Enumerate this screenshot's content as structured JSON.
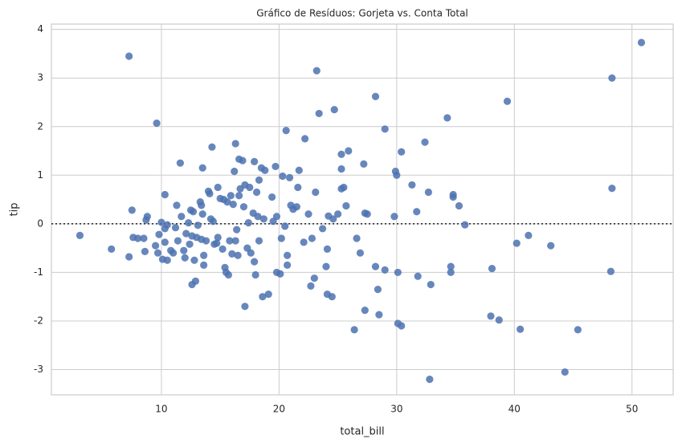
{
  "chart_data": {
    "type": "scatter",
    "title": "Gráfico de Resíduos: Gorjeta vs. Conta Total",
    "x_label": "total_bill",
    "y_label": "tip",
    "color": "#4c72b0",
    "grid": true,
    "hline": 0,
    "xlim": [
      0.65,
      53.5
    ],
    "xticks": [
      10,
      20,
      30,
      40,
      50
    ],
    "ylim": [
      -3.52,
      4.11
    ],
    "yticks": [
      -3,
      -2,
      -1,
      0,
      1,
      2,
      3,
      4
    ],
    "x": [
      7.25,
      9.6,
      3.07,
      5.75,
      7.25,
      7.5,
      7.6,
      8.0,
      8.5,
      8.7,
      8.8,
      8.6,
      9.5,
      9.7,
      9.8,
      10.0,
      10.1,
      10.3,
      10.3,
      10.5,
      10.3,
      10.5,
      10.8,
      11.0,
      11.2,
      11.3,
      11.4,
      11.6,
      11.7,
      11.9,
      12.0,
      12.1,
      12.3,
      12.4,
      12.5,
      12.6,
      12.6,
      12.7,
      12.8,
      12.9,
      13.0,
      13.1,
      13.3,
      13.4,
      13.4,
      13.5,
      13.5,
      13.6,
      13.6,
      13.8,
      14.0,
      14.1,
      14.2,
      14.3,
      14.4,
      14.5,
      14.7,
      14.8,
      14.8,
      15.0,
      15.2,
      15.3,
      15.4,
      15.5,
      15.6,
      15.7,
      15.8,
      15.9,
      16.0,
      16.1,
      16.2,
      16.3,
      16.3,
      16.4,
      16.5,
      16.6,
      16.6,
      16.7,
      16.9,
      17.0,
      17.1,
      17.1,
      17.3,
      17.4,
      17.5,
      17.6,
      17.8,
      17.9,
      17.9,
      18.0,
      18.1,
      18.2,
      18.3,
      18.3,
      18.5,
      18.6,
      18.7,
      18.8,
      19.1,
      19.4,
      19.5,
      19.7,
      19.8,
      19.8,
      20.1,
      20.2,
      20.3,
      20.5,
      20.6,
      20.7,
      20.7,
      20.9,
      21.0,
      21.2,
      21.5,
      21.6,
      21.7,
      22.1,
      22.2,
      22.5,
      22.7,
      22.8,
      23.0,
      23.1,
      23.2,
      23.4,
      23.7,
      24.0,
      24.1,
      24.1,
      24.2,
      24.5,
      24.6,
      24.7,
      25.0,
      25.3,
      25.3,
      25.3,
      25.5,
      25.7,
      25.9,
      26.4,
      26.6,
      26.9,
      27.2,
      27.3,
      27.3,
      27.5,
      28.2,
      28.2,
      28.4,
      28.5,
      29.0,
      29.0,
      29.8,
      29.9,
      30.0,
      30.1,
      30.1,
      30.4,
      30.4,
      31.3,
      31.7,
      31.8,
      32.4,
      32.7,
      32.8,
      32.9,
      34.3,
      34.6,
      34.6,
      34.8,
      34.8,
      35.3,
      35.8,
      38.0,
      38.1,
      38.7,
      39.4,
      40.2,
      40.5,
      41.2,
      43.1,
      44.3,
      45.4,
      48.2,
      48.3,
      48.3,
      50.8
    ],
    "values": [
      3.45,
      2.07,
      -0.24,
      -0.52,
      -0.68,
      0.28,
      -0.28,
      -0.3,
      -0.3,
      0.08,
      0.15,
      -0.57,
      -0.45,
      -0.6,
      -0.22,
      0.03,
      -0.73,
      0.6,
      -0.38,
      -0.75,
      -0.1,
      -0.02,
      -0.55,
      -0.6,
      -0.08,
      0.38,
      -0.35,
      1.25,
      0.15,
      -0.55,
      -0.7,
      -0.2,
      0.02,
      -0.42,
      0.28,
      -0.25,
      -1.25,
      0.25,
      -0.75,
      -1.18,
      -0.28,
      -0.03,
      0.45,
      0.38,
      -0.32,
      0.2,
      1.15,
      -0.65,
      -0.85,
      -0.35,
      0.67,
      0.62,
      0.1,
      1.58,
      0.05,
      -0.42,
      -0.4,
      0.75,
      -0.28,
      0.52,
      -0.52,
      0.5,
      -0.9,
      -1.0,
      0.45,
      -1.05,
      -0.35,
      0.58,
      -0.62,
      0.4,
      1.08,
      1.65,
      -0.35,
      -0.12,
      -0.65,
      0.58,
      1.33,
      0.72,
      1.3,
      0.35,
      0.8,
      -1.7,
      -0.5,
      0.02,
      0.75,
      -0.6,
      0.22,
      1.28,
      -0.78,
      -1.05,
      0.65,
      0.15,
      0.9,
      -0.35,
      1.15,
      -1.5,
      0.1,
      1.1,
      -1.45,
      0.55,
      0.05,
      1.18,
      -1.0,
      0.15,
      -1.03,
      -0.3,
      0.98,
      -0.05,
      1.92,
      -0.65,
      -0.85,
      0.95,
      0.38,
      0.3,
      0.35,
      0.75,
      1.1,
      -0.38,
      1.75,
      0.2,
      -1.28,
      -0.3,
      -1.12,
      0.65,
      3.15,
      2.27,
      -0.1,
      -0.88,
      -1.45,
      -0.52,
      0.16,
      -1.5,
      0.1,
      2.35,
      0.2,
      0.72,
      1.13,
      1.43,
      0.75,
      0.37,
      1.5,
      -2.18,
      -0.3,
      -0.6,
      1.23,
      -1.78,
      0.22,
      0.2,
      2.62,
      -0.88,
      -1.35,
      -1.87,
      1.95,
      -0.95,
      0.15,
      1.08,
      1.0,
      -2.05,
      -1.0,
      -2.1,
      1.48,
      0.8,
      0.25,
      -1.08,
      1.68,
      0.65,
      -3.2,
      -1.25,
      2.18,
      -0.88,
      -1.0,
      0.6,
      0.55,
      0.37,
      -0.02,
      -1.9,
      -0.92,
      -1.98,
      2.52,
      -0.4,
      -2.17,
      -0.24,
      -0.45,
      -3.05,
      -2.18,
      -0.98,
      0.73,
      3.0,
      3.73
    ]
  }
}
